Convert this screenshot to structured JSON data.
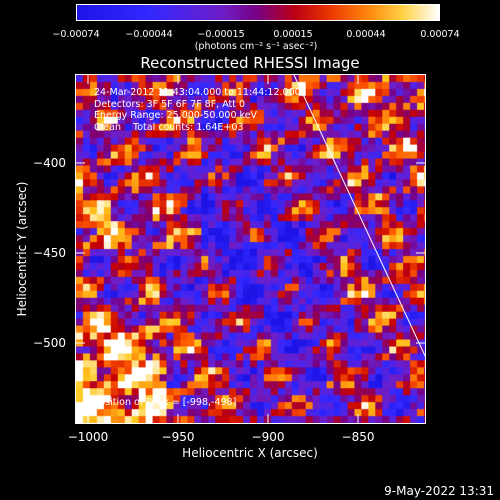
{
  "colorbar": {
    "ticks": [
      "−0.00074",
      "−0.00044",
      "−0.00015",
      "0.00015",
      "0.00044",
      "0.00074"
    ],
    "units": "(photons cm⁻² s⁻¹ asec⁻²)",
    "range": [
      -0.00074,
      0.00074
    ]
  },
  "title": "Reconstructed RHESSI Image",
  "annotation": {
    "line1": "24-Mar-2012 11:43:04.000 to 11:44:12.000",
    "line2": "Detectors: 3F 5F 6F 7F 8F, Att 0",
    "line3": "Energy Range: 25.000-50.000 keV",
    "line4": "Clean    Total counts: 1.64E+03",
    "peak": "Position of Peak = [-998,-498]"
  },
  "axes": {
    "xlabel": "Heliocentric X (arcsec)",
    "ylabel": "Heliocentric Y (arcsec)",
    "xticks": [
      "−1000",
      "−950",
      "−900",
      "−850"
    ],
    "yticks": [
      "−400",
      "−450",
      "−500"
    ],
    "xrange": [
      -1010,
      -815
    ],
    "yrange": [
      -545,
      -350
    ]
  },
  "footer": "9-May-2022 13:31",
  "chart_data": {
    "type": "heatmap",
    "title": "Reconstructed RHESSI Image",
    "xlabel": "Heliocentric X (arcsec)",
    "ylabel": "Heliocentric Y (arcsec)",
    "xlim": [
      -1010,
      -815
    ],
    "ylim": [
      -545,
      -350
    ],
    "colorscale_range": [
      -0.00074,
      0.00074
    ],
    "peak_position": [
      -998,
      -498
    ]
  }
}
